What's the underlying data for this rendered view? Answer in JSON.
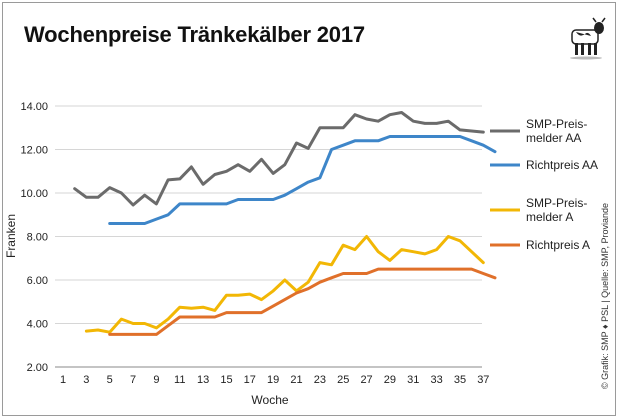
{
  "chart_data": {
    "type": "line",
    "title": "Wochenpreise Tränkekälber 2017",
    "xlabel": "Woche",
    "ylabel": "Franken",
    "xlim": [
      1,
      38
    ],
    "ylim": [
      2,
      14
    ],
    "x_ticks": [
      "1",
      "3",
      "5",
      "7",
      "9",
      "11",
      "13",
      "15",
      "17",
      "19",
      "21",
      "23",
      "25",
      "27",
      "29",
      "31",
      "33",
      "35",
      "37"
    ],
    "y_ticks": [
      "2.00",
      "4.00",
      "6.00",
      "8.00",
      "10.00",
      "12.00",
      "14.00"
    ],
    "grid": "horizontal",
    "legend_position": "right",
    "credit": "© Grafik: SMP ♦ PSL | Quelle: SMP, Proviande",
    "series": [
      {
        "name": "SMP-Preis-melder AA",
        "legend_lines": [
          "SMP-Preis-",
          "melder AA"
        ],
        "color": "#6b6b6b",
        "x": [
          2,
          3,
          4,
          5,
          6,
          7,
          8,
          9,
          10,
          11,
          12,
          13,
          14,
          15,
          16,
          17,
          18,
          19,
          20,
          21,
          22,
          23,
          24,
          25,
          26,
          27,
          28,
          29,
          30,
          31,
          32,
          33,
          34,
          35,
          36,
          37,
          38
        ],
        "values": [
          10.2,
          9.8,
          9.8,
          10.25,
          10.0,
          9.45,
          9.9,
          9.5,
          10.6,
          10.65,
          11.2,
          10.4,
          10.85,
          11.0,
          11.3,
          11.0,
          11.55,
          10.9,
          11.3,
          12.3,
          12.05,
          13.0,
          13.0,
          13.0,
          13.6,
          13.4,
          13.3,
          13.6,
          13.7,
          13.3,
          13.2,
          13.2,
          13.3,
          12.9,
          12.85,
          12.8,
          null
        ]
      },
      {
        "name": "Richtpreis AA",
        "legend_lines": [
          "Richtpreis AA"
        ],
        "color": "#3e86c9",
        "x": [
          5,
          6,
          7,
          8,
          9,
          10,
          11,
          12,
          13,
          14,
          15,
          16,
          17,
          18,
          19,
          20,
          21,
          22,
          23,
          24,
          25,
          26,
          27,
          28,
          29,
          30,
          31,
          32,
          33,
          34,
          35,
          36,
          37,
          38
        ],
        "values": [
          8.6,
          8.6,
          8.6,
          8.6,
          8.8,
          9.0,
          9.5,
          9.5,
          9.5,
          9.5,
          9.5,
          9.7,
          9.7,
          9.7,
          9.7,
          9.9,
          10.2,
          10.5,
          10.7,
          12.0,
          12.2,
          12.4,
          12.4,
          12.4,
          12.6,
          12.6,
          12.6,
          12.6,
          12.6,
          12.6,
          12.6,
          12.4,
          12.2,
          11.9
        ]
      },
      {
        "name": "SMP-Preis-melder A",
        "legend_lines": [
          "SMP-Preis-",
          "melder A"
        ],
        "color": "#f2b705",
        "x": [
          3,
          4,
          5,
          6,
          7,
          8,
          9,
          10,
          11,
          12,
          13,
          14,
          15,
          16,
          17,
          18,
          19,
          20,
          21,
          22,
          23,
          24,
          25,
          26,
          27,
          28,
          29,
          30,
          31,
          32,
          33,
          34,
          35,
          36,
          37
        ],
        "values": [
          3.65,
          3.7,
          3.6,
          4.2,
          4.0,
          4.0,
          3.8,
          4.2,
          4.75,
          4.7,
          4.75,
          4.6,
          5.3,
          5.3,
          5.35,
          5.1,
          5.5,
          6.0,
          5.5,
          5.9,
          6.8,
          6.7,
          7.6,
          7.4,
          8.0,
          7.3,
          6.9,
          7.4,
          7.3,
          7.2,
          7.4,
          8.0,
          7.8,
          7.3,
          6.8
        ]
      },
      {
        "name": "Richtpreis A",
        "legend_lines": [
          "Richtpreis A"
        ],
        "color": "#e0702a",
        "x": [
          5,
          6,
          7,
          8,
          9,
          10,
          11,
          12,
          13,
          14,
          15,
          16,
          17,
          18,
          19,
          20,
          21,
          22,
          23,
          24,
          25,
          26,
          27,
          28,
          29,
          30,
          31,
          32,
          33,
          34,
          35,
          36,
          37,
          38
        ],
        "values": [
          3.5,
          3.5,
          3.5,
          3.5,
          3.5,
          3.9,
          4.3,
          4.3,
          4.3,
          4.3,
          4.5,
          4.5,
          4.5,
          4.5,
          4.8,
          5.1,
          5.4,
          5.6,
          5.9,
          6.1,
          6.3,
          6.3,
          6.3,
          6.5,
          6.5,
          6.5,
          6.5,
          6.5,
          6.5,
          6.5,
          6.5,
          6.5,
          6.3,
          6.1
        ]
      }
    ]
  }
}
